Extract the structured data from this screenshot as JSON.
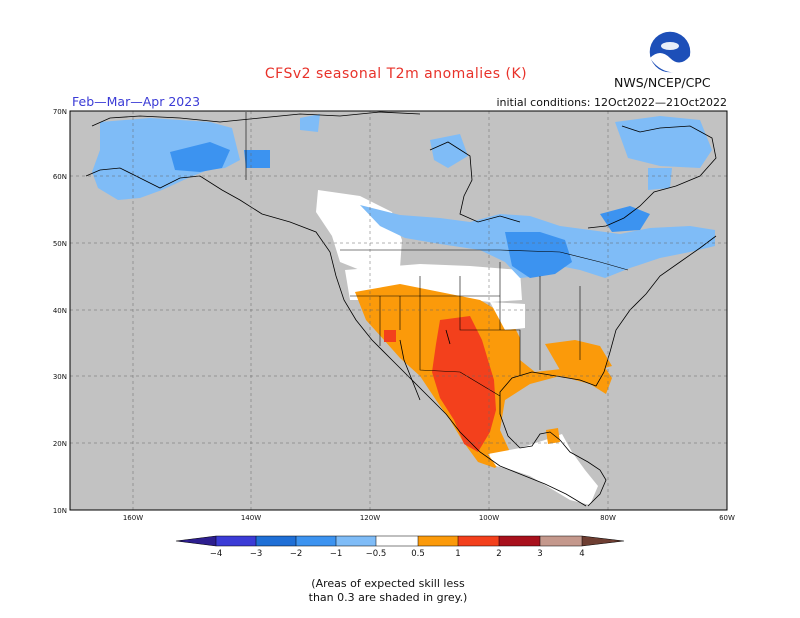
{
  "title": "CFSv2 seasonal T2m anomalies (K)",
  "season": "Feb—Mar—Apr 2023",
  "agency": "NWS/NCEP/CPC",
  "initial_conditions": "initial conditions: 12Oct2022—21Oct2022",
  "logo_icon": "noaa-logo-icon",
  "lat_ticks": [
    "70N",
    "60N",
    "50N",
    "40N",
    "30N",
    "20N",
    "10N"
  ],
  "lon_ticks": [
    "160W",
    "140W",
    "120W",
    "100W",
    "80W",
    "60W"
  ],
  "colorbar": {
    "labels": [
      "−4",
      "−3",
      "−2",
      "−1",
      "−0.5",
      "0.5",
      "1",
      "2",
      "3",
      "4"
    ],
    "colors": {
      "lt_-4": "#2d1e8f",
      "-4_-3": "#3b3bd6",
      "-3_-2": "#1f6fd6",
      "-2_-1": "#3c93f0",
      "-1_-0.5": "#7fbcf7",
      "-0.5_0.5": "#ffffff",
      "0.5_1": "#fb9a0a",
      "1_2": "#f3401c",
      "2_3": "#a8101c",
      "3_4": "#c4988c",
      "gt_4": "#6e3e32"
    }
  },
  "colors": {
    "land_low_skill": "#c2c2c2",
    "ocean": "#c2c2c2",
    "title": "#e8322a",
    "season": "#3b3bd6"
  },
  "note": {
    "line1": "(Areas of expected skill less",
    "line2": "than 0.3 are shaded in grey.)"
  }
}
